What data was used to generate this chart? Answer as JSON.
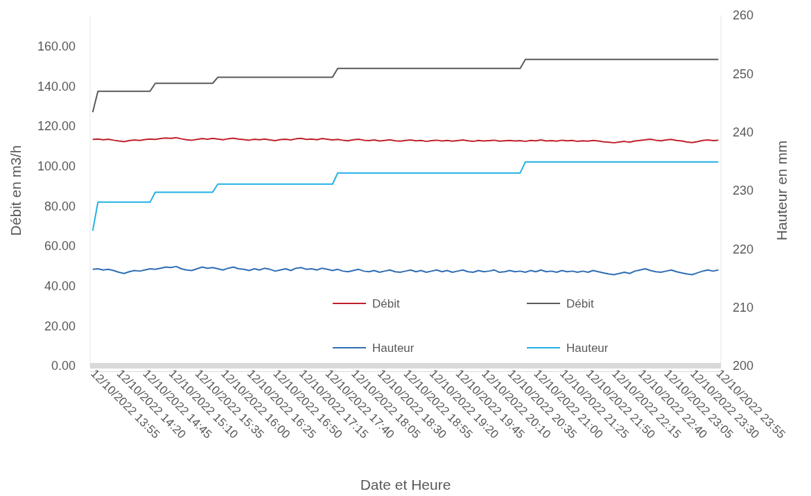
{
  "chart_data": {
    "type": "line",
    "xlabel": "Date et Heure",
    "ylabel": "Débit en m3/h",
    "y2label": "Hauteur en mm",
    "categories": [
      "12/10/2022 13:55",
      null,
      null,
      null,
      null,
      "12/10/2022 14:20",
      null,
      null,
      null,
      null,
      "12/10/2022 14:45",
      null,
      null,
      null,
      null,
      "12/10/2022 15:10",
      null,
      null,
      null,
      null,
      "12/10/2022 15:35",
      null,
      null,
      null,
      null,
      "12/10/2022 16:00",
      null,
      null,
      null,
      null,
      "12/10/2022 16:25",
      null,
      null,
      null,
      null,
      "12/10/2022 16:50",
      null,
      null,
      null,
      null,
      "12/10/2022 17:15",
      null,
      null,
      null,
      null,
      "12/10/2022 17:40",
      null,
      null,
      null,
      null,
      "12/10/2022 18:05",
      null,
      null,
      null,
      null,
      "12/10/2022 18:30",
      null,
      null,
      null,
      null,
      "12/10/2022 18:55",
      null,
      null,
      null,
      null,
      "12/10/2022 19:20",
      null,
      null,
      null,
      null,
      "12/10/2022 19:45",
      null,
      null,
      null,
      null,
      "12/10/2022 20:10",
      null,
      null,
      null,
      null,
      "12/10/2022 20:35",
      null,
      null,
      null,
      null,
      "12/10/2022 21:00",
      null,
      null,
      null,
      null,
      "12/10/2022 21:25",
      null,
      null,
      null,
      null,
      "12/10/2022 21:50",
      null,
      null,
      null,
      null,
      "12/10/2022 22:15",
      null,
      null,
      null,
      null,
      "12/10/2022 22:40",
      null,
      null,
      null,
      null,
      "12/10/2022 23:05",
      null,
      null,
      null,
      null,
      "12/10/2022 23:30",
      null,
      null,
      null,
      null,
      "12/10/2022 23:55"
    ],
    "ylim": [
      0,
      175.6
    ],
    "yticks": [
      {
        "value": 0,
        "label": "0.00"
      },
      {
        "value": 20,
        "label": "20.00"
      },
      {
        "value": 40,
        "label": "40.00"
      },
      {
        "value": 60,
        "label": "60.00"
      },
      {
        "value": 80,
        "label": "80.00"
      },
      {
        "value": 100,
        "label": "100.00"
      },
      {
        "value": 120,
        "label": "120.00"
      },
      {
        "value": 140,
        "label": "140.00"
      },
      {
        "value": 160,
        "label": "160.00"
      }
    ],
    "y2lim": [
      200,
      260
    ],
    "y2ticks": [
      200,
      210,
      220,
      230,
      240,
      250,
      260
    ],
    "legend": "bottom right",
    "marker": "none",
    "line_style": "solid",
    "series": [
      {
        "name": "Débit",
        "color": "#c0202a",
        "values": [
          113.4,
          113.6,
          113.2,
          113.5,
          113.0,
          112.6,
          112.3,
          112.8,
          113.1,
          112.9,
          113.3,
          113.6,
          113.4,
          113.8,
          114.1,
          113.9,
          114.3,
          113.7,
          113.2,
          113.0,
          113.4,
          113.8,
          113.5,
          113.9,
          113.6,
          113.2,
          113.7,
          114.0,
          113.6,
          113.3,
          113.0,
          113.5,
          113.2,
          113.6,
          113.1,
          112.8,
          113.3,
          113.5,
          113.1,
          113.7,
          113.9,
          113.4,
          113.6,
          113.2,
          113.8,
          113.5,
          113.1,
          113.4,
          113.0,
          112.7,
          113.2,
          113.5,
          113.0,
          112.8,
          113.1,
          112.6,
          112.9,
          113.2,
          112.7,
          112.5,
          112.9,
          113.1,
          112.7,
          112.9,
          112.4,
          112.8,
          113.0,
          112.6,
          112.9,
          112.5,
          112.8,
          113.1,
          112.7,
          112.4,
          112.9,
          112.6,
          112.8,
          113.0,
          112.5,
          112.7,
          112.9,
          112.6,
          112.8,
          112.4,
          112.9,
          112.7,
          113.1,
          112.6,
          112.8,
          112.5,
          113.0,
          112.7,
          112.9,
          112.4,
          112.7,
          112.5,
          112.9,
          112.6,
          112.2,
          112.0,
          111.7,
          112.1,
          112.4,
          112.0,
          112.6,
          112.9,
          113.2,
          113.5,
          113.0,
          112.7,
          113.1,
          113.4,
          112.9,
          112.6,
          112.1,
          111.8,
          112.3,
          112.9,
          113.1,
          112.8,
          113.0
        ]
      },
      {
        "name": "Débit",
        "color": "#595959",
        "values": [
          127,
          137.5,
          137.5,
          137.5,
          137.5,
          137.5,
          137.5,
          137.5,
          137.5,
          137.5,
          137.5,
          137.5,
          141.5,
          141.5,
          141.5,
          141.5,
          141.5,
          141.5,
          141.5,
          141.5,
          141.5,
          141.5,
          141.5,
          141.5,
          144.5,
          144.5,
          144.5,
          144.5,
          144.5,
          144.5,
          144.5,
          144.5,
          144.5,
          144.5,
          144.5,
          144.5,
          144.5,
          144.5,
          144.5,
          144.5,
          144.5,
          144.5,
          144.5,
          144.5,
          144.5,
          144.5,
          144.5,
          149,
          149,
          149,
          149,
          149,
          149,
          149,
          149,
          149,
          149,
          149,
          149,
          149,
          149,
          149,
          149,
          149,
          149,
          149,
          149,
          149,
          149,
          149,
          149,
          149,
          149,
          149,
          149,
          149,
          149,
          149,
          149,
          149,
          149,
          149,
          149,
          153.5,
          153.5,
          153.5,
          153.5,
          153.5,
          153.5,
          153.5,
          153.5,
          153.5,
          153.5,
          153.5,
          153.5,
          153.5,
          153.5,
          153.5,
          153.5,
          153.5,
          153.5,
          153.5,
          153.5,
          153.5,
          153.5,
          153.5,
          153.5,
          153.5,
          153.5,
          153.5,
          153.5,
          153.5,
          153.5,
          153.5,
          153.5,
          153.5,
          153.5,
          153.5,
          153.5,
          153.5,
          153.5
        ]
      },
      {
        "name": "Hauteur",
        "color": "#2e6db4",
        "axis": "y2",
        "values": [
          216.5,
          216.6,
          216.4,
          216.5,
          216.3,
          216.0,
          215.8,
          216.1,
          216.3,
          216.2,
          216.4,
          216.6,
          216.5,
          216.7,
          216.9,
          216.8,
          217.0,
          216.6,
          216.4,
          216.3,
          216.6,
          216.9,
          216.7,
          216.8,
          216.6,
          216.4,
          216.7,
          216.9,
          216.6,
          216.5,
          216.3,
          216.6,
          216.4,
          216.7,
          216.5,
          216.2,
          216.4,
          216.6,
          216.3,
          216.7,
          216.8,
          216.5,
          216.6,
          216.4,
          216.7,
          216.5,
          216.3,
          216.5,
          216.2,
          216.1,
          216.3,
          216.5,
          216.2,
          216.1,
          216.3,
          216.0,
          216.2,
          216.4,
          216.1,
          216.0,
          216.2,
          216.4,
          216.1,
          216.3,
          216.0,
          216.2,
          216.4,
          216.1,
          216.3,
          216.0,
          216.2,
          216.4,
          216.1,
          216.0,
          216.3,
          216.1,
          216.2,
          216.4,
          216.0,
          216.1,
          216.3,
          216.1,
          216.2,
          216.0,
          216.3,
          216.1,
          216.4,
          216.1,
          216.2,
          216.0,
          216.3,
          216.1,
          216.2,
          216.0,
          216.2,
          216.0,
          216.3,
          216.1,
          215.9,
          215.7,
          215.6,
          215.8,
          216.0,
          215.8,
          216.2,
          216.4,
          216.6,
          216.3,
          216.1,
          216.0,
          216.2,
          216.4,
          216.1,
          215.9,
          215.7,
          215.6,
          215.9,
          216.2,
          216.4,
          216.2,
          216.4
        ]
      },
      {
        "name": "Hauteur",
        "color": "#1fb1e6",
        "axis": "y2",
        "values": [
          223.1,
          228,
          228,
          228,
          228,
          228,
          228,
          228,
          228,
          228,
          228,
          228,
          229.7,
          229.7,
          229.7,
          229.7,
          229.7,
          229.7,
          229.7,
          229.7,
          229.7,
          229.7,
          229.7,
          229.7,
          231.1,
          231.1,
          231.1,
          231.1,
          231.1,
          231.1,
          231.1,
          231.1,
          231.1,
          231.1,
          231.1,
          231.1,
          231.1,
          231.1,
          231.1,
          231.1,
          231.1,
          231.1,
          231.1,
          231.1,
          231.1,
          231.1,
          231.1,
          233,
          233,
          233,
          233,
          233,
          233,
          233,
          233,
          233,
          233,
          233,
          233,
          233,
          233,
          233,
          233,
          233,
          233,
          233,
          233,
          233,
          233,
          233,
          233,
          233,
          233,
          233,
          233,
          233,
          233,
          233,
          233,
          233,
          233,
          233,
          233,
          234.9,
          234.9,
          234.9,
          234.9,
          234.9,
          234.9,
          234.9,
          234.9,
          234.9,
          234.9,
          234.9,
          234.9,
          234.9,
          234.9,
          234.9,
          234.9,
          234.9,
          234.9,
          234.9,
          234.9,
          234.9,
          234.9,
          234.9,
          234.9,
          234.9,
          234.9,
          234.9,
          234.9,
          234.9,
          234.9,
          234.9,
          234.9,
          234.9,
          234.9,
          234.9,
          234.9,
          234.9,
          234.9
        ]
      }
    ]
  }
}
